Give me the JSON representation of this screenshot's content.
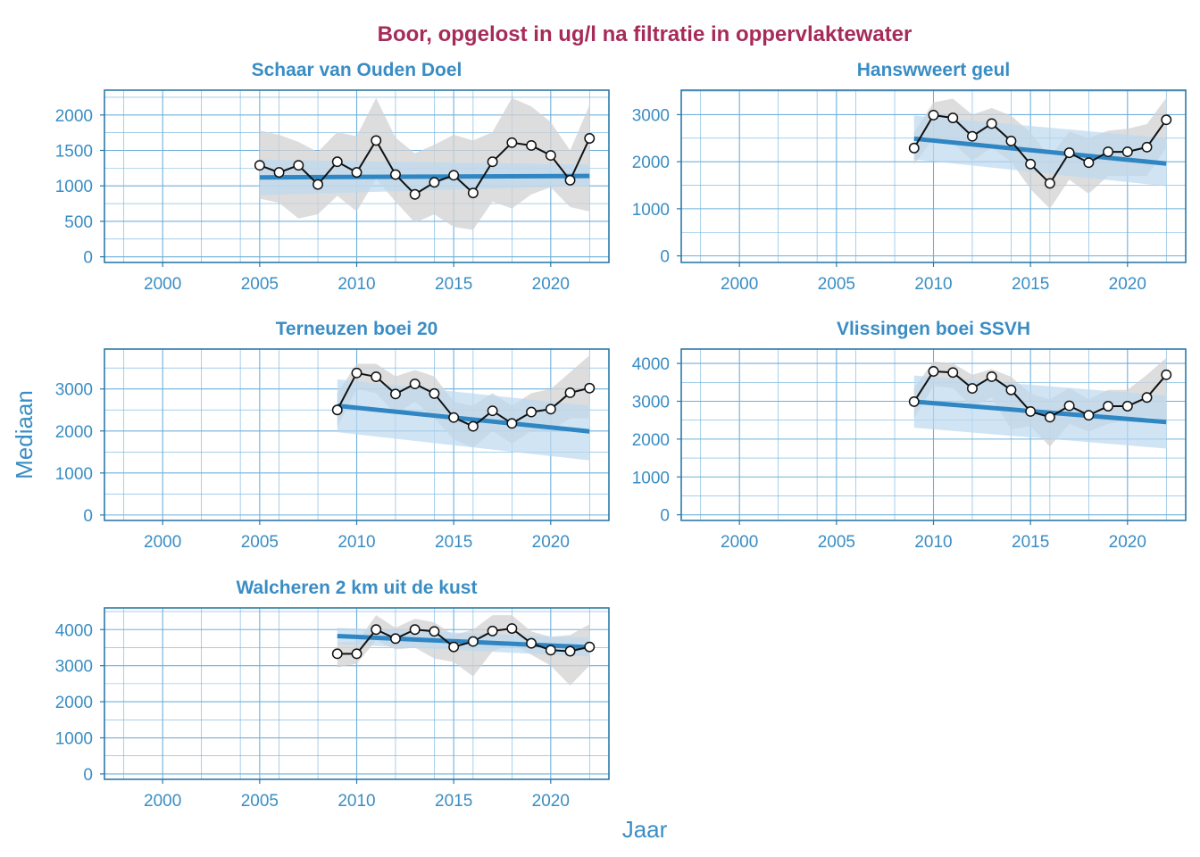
{
  "figure": {
    "title": "Boor, opgelost in ug/l na filtratie in oppervlaktewater",
    "xlabel": "Jaar",
    "ylabel": "Mediaan",
    "colors": {
      "title": "#a62b59",
      "axis_text": "#3a8dc4",
      "panel_border": "#2c7aa9",
      "grid": "#6fb0dc",
      "trend_line": "#2f86c2",
      "trend_band": "#bcd9f0",
      "range_band": "#d2d2d2",
      "series_line": "#111111"
    }
  },
  "chart_data": [
    {
      "type": "line",
      "title": "Schaar van Ouden Doel",
      "xlim": [
        1997,
        2023
      ],
      "xticks": [
        2000,
        2005,
        2010,
        2015,
        2020
      ],
      "ylim": [
        -80,
        2350
      ],
      "yticks": [
        0,
        500,
        1000,
        1500,
        2000
      ],
      "x": [
        2005,
        2006,
        2007,
        2008,
        2009,
        2010,
        2011,
        2012,
        2013,
        2014,
        2015,
        2016,
        2017,
        2018,
        2019,
        2020,
        2021,
        2022
      ],
      "values": [
        1290,
        1190,
        1290,
        1020,
        1340,
        1190,
        1640,
        1160,
        880,
        1050,
        1150,
        900,
        1340,
        1610,
        1570,
        1430,
        1080,
        1670
      ],
      "range_low": [
        820,
        760,
        540,
        600,
        860,
        640,
        1100,
        780,
        480,
        600,
        420,
        380,
        780,
        680,
        880,
        980,
        700,
        640
      ],
      "range_high": [
        1780,
        1720,
        1620,
        1480,
        1760,
        1700,
        2240,
        1680,
        1460,
        1580,
        1720,
        1640,
        1760,
        2240,
        2120,
        1900,
        1500,
        2140
      ],
      "trend": {
        "x": [
          2005,
          2022
        ],
        "y": [
          1120,
          1140
        ]
      },
      "trend_low": [
        870,
        1000
      ],
      "trend_high": [
        1370,
        1300
      ]
    },
    {
      "type": "line",
      "title": "Hanswweert geul",
      "xlim": [
        1997,
        2023
      ],
      "xticks": [
        2000,
        2005,
        2010,
        2015,
        2020
      ],
      "ylim": [
        -140,
        3520
      ],
      "yticks": [
        0,
        1000,
        2000,
        3000
      ],
      "x": [
        2009,
        2010,
        2011,
        2012,
        2013,
        2014,
        2015,
        2016,
        2017,
        2018,
        2019,
        2020,
        2021,
        2022
      ],
      "values": [
        2290,
        2990,
        2930,
        2540,
        2810,
        2440,
        1950,
        1540,
        2190,
        1980,
        2210,
        2210,
        2310,
        2890
      ],
      "range_low": [
        1940,
        2500,
        2400,
        2020,
        2300,
        2000,
        1420,
        1000,
        1620,
        1320,
        1700,
        1700,
        1700,
        2300
      ],
      "range_high": [
        2620,
        3260,
        3340,
        3000,
        3140,
        2980,
        2620,
        2100,
        2640,
        2500,
        2660,
        2700,
        2800,
        3360
      ],
      "trend": {
        "x": [
          2009,
          2022
        ],
        "y": [
          2490,
          1960
        ]
      },
      "trend_low": [
        2050,
        1480
      ],
      "trend_high": [
        2980,
        2500
      ]
    },
    {
      "type": "line",
      "title": "Terneuzen boei 20",
      "xlim": [
        1997,
        2023
      ],
      "xticks": [
        2000,
        2005,
        2010,
        2015,
        2020
      ],
      "ylim": [
        -130,
        3950
      ],
      "yticks": [
        0,
        1000,
        2000,
        3000
      ],
      "x": [
        2009,
        2010,
        2011,
        2012,
        2013,
        2014,
        2015,
        2016,
        2017,
        2018,
        2019,
        2020,
        2021,
        2022
      ],
      "values": [
        2500,
        3380,
        3290,
        2880,
        3120,
        2890,
        2320,
        2110,
        2480,
        2180,
        2450,
        2520,
        2910,
        3020
      ],
      "range_low": [
        2100,
        3000,
        2900,
        2400,
        2700,
        2300,
        1800,
        1600,
        2000,
        1700,
        2000,
        2000,
        2300,
        2300
      ],
      "range_high": [
        2900,
        3600,
        3600,
        3300,
        3450,
        3300,
        2700,
        2600,
        2900,
        2600,
        2900,
        3000,
        3400,
        3800
      ],
      "trend": {
        "x": [
          2009,
          2022
        ],
        "y": [
          2600,
          1990
        ]
      },
      "trend_low": [
        1970,
        1300
      ],
      "trend_high": [
        3230,
        2600
      ]
    },
    {
      "type": "line",
      "title": "Vlissingen boei SSVH",
      "xlim": [
        1997,
        2023
      ],
      "xticks": [
        2000,
        2005,
        2010,
        2015,
        2020
      ],
      "ylim": [
        -150,
        4380
      ],
      "yticks": [
        0,
        1000,
        2000,
        3000,
        4000
      ],
      "x": [
        2009,
        2010,
        2011,
        2012,
        2013,
        2014,
        2015,
        2016,
        2017,
        2018,
        2019,
        2020,
        2021,
        2022
      ],
      "values": [
        2990,
        3790,
        3760,
        3340,
        3650,
        3300,
        2730,
        2580,
        2880,
        2630,
        2870,
        2870,
        3100,
        3700
      ],
      "range_low": [
        2550,
        3400,
        3350,
        2850,
        3100,
        2250,
        2350,
        1800,
        2400,
        2200,
        2400,
        2500,
        2600,
        2500
      ],
      "range_high": [
        3350,
        4050,
        4000,
        3700,
        3850,
        3650,
        3200,
        3050,
        3350,
        3050,
        3300,
        3300,
        3700,
        4150
      ],
      "trend": {
        "x": [
          2009,
          2022
        ],
        "y": [
          2990,
          2450
        ]
      },
      "trend_low": [
        2300,
        1750
      ],
      "trend_high": [
        3680,
        3150
      ]
    },
    {
      "type": "line",
      "title": "Walcheren 2 km uit de kust",
      "xlim": [
        1997,
        2023
      ],
      "xticks": [
        2000,
        2005,
        2010,
        2015,
        2020
      ],
      "ylim": [
        -150,
        4600
      ],
      "yticks": [
        0,
        1000,
        2000,
        3000,
        4000
      ],
      "x": [
        2009,
        2010,
        2011,
        2012,
        2013,
        2014,
        2015,
        2016,
        2017,
        2018,
        2019,
        2020,
        2021,
        2022
      ],
      "values": [
        3330,
        3330,
        4000,
        3750,
        4000,
        3950,
        3520,
        3670,
        3960,
        4030,
        3620,
        3430,
        3400,
        3520
      ],
      "range_low": [
        2950,
        3050,
        3700,
        3450,
        3500,
        3200,
        3100,
        2700,
        3400,
        3600,
        3300,
        3000,
        2450,
        3000
      ],
      "range_high": [
        3650,
        3650,
        4400,
        4050,
        4300,
        4200,
        3850,
        4000,
        4400,
        4400,
        3950,
        3800,
        3850,
        4150
      ],
      "trend": {
        "x": [
          2009,
          2022
        ],
        "y": [
          3820,
          3510
        ]
      },
      "trend_low": [
        3600,
        3250
      ],
      "trend_high": [
        4050,
        3770
      ]
    }
  ]
}
